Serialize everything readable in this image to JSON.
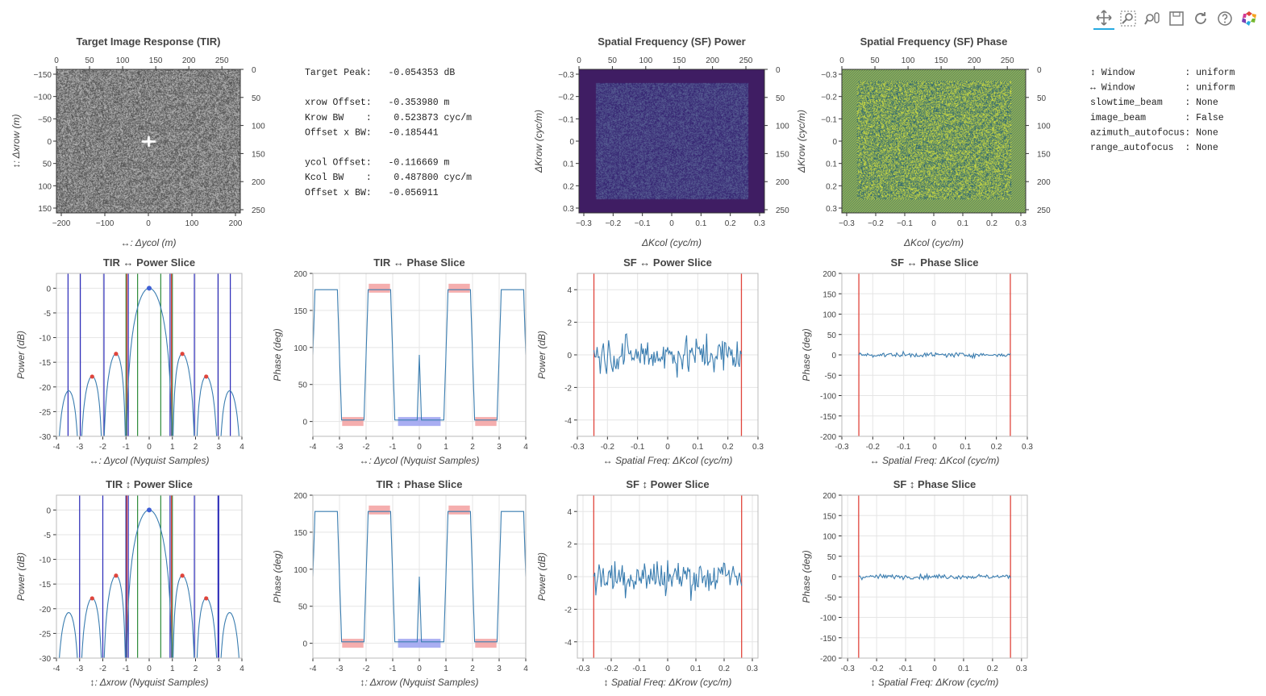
{
  "toolbar": {
    "tools": [
      {
        "name": "pan-tool",
        "icon": "pan-icon",
        "active": true
      },
      {
        "name": "box-zoom-tool",
        "icon": "box-zoom-icon",
        "active": false
      },
      {
        "name": "wheel-zoom-tool",
        "icon": "wheel-zoom-icon",
        "active": false
      },
      {
        "name": "save-tool",
        "icon": "save-icon",
        "active": false
      },
      {
        "name": "reset-tool",
        "icon": "reset-icon",
        "active": false
      },
      {
        "name": "help-tool",
        "icon": "help-icon",
        "active": false
      },
      {
        "name": "bokeh-logo",
        "icon": "bokeh-logo-icon",
        "active": false
      }
    ]
  },
  "colors": {
    "line": "#3a7db0",
    "green": "#2e8b3a",
    "blue_line": "#2a2ab8",
    "red_line": "#e0453c",
    "red_patch": "#f3a0a0",
    "blue_patch": "#9aa0f0",
    "grid": "#e5e5e5",
    "viridis_dark": "#3f1d63",
    "viridis_mid": "#2f6e8e",
    "viridis_bright": "#c8e03a"
  },
  "stats": {
    "lines": [
      "Target Peak:   -0.054353 dB",
      "",
      "xrow Offset:   -0.353980 m",
      "Krow BW    :    0.523873 cyc/m",
      "Offset x BW:   -0.185441",
      "",
      "ycol Offset:   -0.116669 m",
      "Kcol BW    :    0.487800 cyc/m",
      "Offset x BW:   -0.056911"
    ]
  },
  "settings": {
    "lines": [
      "↕ Window         : uniform",
      "↔ Window         : uniform",
      "slowtime_beam    : None",
      "image_beam       : False",
      "azimuth_autofocus: None",
      "range_autofocus  : None"
    ]
  },
  "images": [
    {
      "id": "tir",
      "title": "Target Image Response (TIR)",
      "xlabel": "↔: Δycol (m)",
      "ylabel": "↕: Δxrow (m)",
      "bottom_ticks": [
        "−200",
        "−100",
        "0",
        "100",
        "200"
      ],
      "left_ticks": [
        "−150",
        "−100",
        "−50",
        "0",
        "50",
        "100",
        "150"
      ],
      "top_ticks": [
        "0",
        "50",
        "100",
        "150",
        "200",
        "250"
      ],
      "right_ticks": [
        "0",
        "50",
        "100",
        "150",
        "200",
        "250"
      ],
      "style": "gray"
    },
    {
      "id": "sfpow",
      "title": "Spatial Frequency (SF) Power",
      "xlabel": "ΔKcol (cyc/m)",
      "ylabel": "ΔKrow (cyc/m)",
      "bottom_ticks": [
        "−0.3",
        "−0.2",
        "−0.1",
        "0",
        "0.1",
        "0.2",
        "0.3"
      ],
      "left_ticks": [
        "−0.3",
        "−0.2",
        "−0.1",
        "0",
        "0.1",
        "0.2",
        "0.3"
      ],
      "top_ticks": [
        "0",
        "50",
        "100",
        "150",
        "200",
        "250"
      ],
      "right_ticks": [
        "0",
        "50",
        "100",
        "150",
        "200",
        "250"
      ],
      "style": "power"
    },
    {
      "id": "sfphase",
      "title": "Spatial Frequency (SF) Phase",
      "xlabel": "ΔKcol (cyc/m)",
      "ylabel": "ΔKrow (cyc/m)",
      "bottom_ticks": [
        "−0.3",
        "−0.2",
        "−0.1",
        "0",
        "0.1",
        "0.2",
        "0.3"
      ],
      "left_ticks": [
        "−0.3",
        "−0.2",
        "−0.1",
        "0",
        "0.1",
        "0.2",
        "0.3"
      ],
      "top_ticks": [
        "0",
        "50",
        "100",
        "150",
        "200",
        "250"
      ],
      "right_ticks": [
        "0",
        "50",
        "100",
        "150",
        "200",
        "250"
      ],
      "style": "phase"
    }
  ],
  "chart_data": [
    {
      "id": "tir-h-power",
      "type": "line",
      "title": "TIR ↔ Power Slice",
      "xlabel": "↔: Δycol (Nyquist Samples)",
      "ylabel": "Power (dB)",
      "xlim": [
        -4,
        4
      ],
      "ylim": [
        -30,
        3
      ],
      "xticks": [
        -4,
        -3,
        -2,
        -1,
        0,
        1,
        2,
        3,
        4
      ],
      "yticks": [
        0,
        -5,
        -10,
        -15,
        -20,
        -25,
        -30
      ],
      "kind": "sinc_power",
      "peak_point": [
        0,
        0
      ],
      "sidelobe_points": [
        [
          -2.46,
          -17.9
        ],
        [
          -1.43,
          -13.3
        ],
        [
          1.43,
          -13.3
        ],
        [
          2.46,
          -17.9
        ]
      ],
      "green_lines": [
        -1.0,
        -0.5,
        0.5,
        1.0
      ],
      "blue_lines": [
        -3.5,
        -2.97,
        -1.95,
        -0.9,
        0.9,
        1.95,
        2.97,
        3.5
      ],
      "red_lines": [
        -0.96,
        0.96
      ]
    },
    {
      "id": "tir-h-phase",
      "type": "line",
      "title": "TIR ↔ Phase Slice",
      "xlabel": "↔: Δycol (Nyquist Samples)",
      "ylabel": "Phase (deg)",
      "xlim": [
        -4,
        4
      ],
      "ylim": [
        -20,
        200
      ],
      "xticks": [
        -4,
        -3,
        -2,
        -1,
        0,
        1,
        2,
        3,
        4
      ],
      "yticks": [
        200,
        150,
        100,
        50,
        0
      ],
      "kind": "step_phase",
      "red_patches": [
        [
          -2.9,
          -2.1,
          0
        ],
        [
          -1.9,
          -1.1,
          180
        ],
        [
          1.1,
          1.9,
          180
        ],
        [
          2.1,
          2.9,
          0
        ]
      ],
      "blue_patches": [
        [
          -0.8,
          0.8,
          0
        ]
      ]
    },
    {
      "id": "sf-h-power",
      "type": "line",
      "title": "SF ↔ Power Slice",
      "xlabel": "↔ Spatial Freq: ΔKcol (cyc/m)",
      "ylabel": "Power (dB)",
      "xlim": [
        -0.3,
        0.3
      ],
      "ylim": [
        -5,
        5
      ],
      "xticks": [
        -0.3,
        -0.2,
        -0.1,
        0,
        0.1,
        0.2,
        0.3
      ],
      "yticks": [
        4,
        2,
        0,
        -2,
        -4
      ],
      "kind": "noise_power",
      "band": [
        -0.245,
        0.245
      ],
      "red_lines": [
        -0.245,
        0.245
      ]
    },
    {
      "id": "sf-h-phase",
      "type": "line",
      "title": "SF ↔ Phase Slice",
      "xlabel": "↔ Spatial Freq: ΔKcol (cyc/m)",
      "ylabel": "Phase (deg)",
      "xlim": [
        -0.3,
        0.3
      ],
      "ylim": [
        -200,
        200
      ],
      "xticks": [
        -0.3,
        -0.2,
        -0.1,
        0,
        0.1,
        0.2,
        0.3
      ],
      "yticks": [
        200,
        150,
        100,
        50,
        0,
        -50,
        -100,
        -150,
        -200
      ],
      "kind": "noise_phase",
      "band": [
        -0.245,
        0.245
      ],
      "red_lines": [
        -0.245,
        0.245
      ]
    },
    {
      "id": "tir-v-power",
      "type": "line",
      "title": "TIR ↕ Power Slice",
      "xlabel": "↕: Δxrow (Nyquist Samples)",
      "ylabel": "Power (dB)",
      "xlim": [
        -4,
        4
      ],
      "ylim": [
        -30,
        3
      ],
      "xticks": [
        -4,
        -3,
        -2,
        -1,
        0,
        1,
        2,
        3,
        4
      ],
      "yticks": [
        0,
        -5,
        -10,
        -15,
        -20,
        -25,
        -30
      ],
      "kind": "sinc_power",
      "peak_point": [
        0,
        0
      ],
      "sidelobe_points": [
        [
          -2.46,
          -17.9
        ],
        [
          -1.43,
          -13.3
        ],
        [
          1.43,
          -13.3
        ],
        [
          2.46,
          -17.9
        ]
      ],
      "green_lines": [
        -1.0,
        -0.5,
        0.5,
        1.0
      ],
      "blue_lines": [
        -3.0,
        -2.0,
        -1.0,
        -0.9,
        0.9,
        1.95,
        2.97,
        3.0
      ],
      "red_lines": [
        -0.96,
        0.96
      ]
    },
    {
      "id": "tir-v-phase",
      "type": "line",
      "title": "TIR ↕ Phase Slice",
      "xlabel": "↕: Δxrow (Nyquist Samples)",
      "ylabel": "Phase (deg)",
      "xlim": [
        -4,
        4
      ],
      "ylim": [
        -20,
        200
      ],
      "xticks": [
        -4,
        -3,
        -2,
        -1,
        0,
        1,
        2,
        3,
        4
      ],
      "yticks": [
        200,
        150,
        100,
        50,
        0
      ],
      "kind": "step_phase",
      "red_patches": [
        [
          -2.9,
          -2.1,
          0
        ],
        [
          -1.9,
          -1.1,
          180
        ],
        [
          1.1,
          1.9,
          180
        ],
        [
          2.1,
          2.9,
          0
        ]
      ],
      "blue_patches": [
        [
          -0.8,
          0.8,
          0
        ]
      ]
    },
    {
      "id": "sf-v-power",
      "type": "line",
      "title": "SF ↕ Power Slice",
      "xlabel": "↕ Spatial Freq: ΔKrow (cyc/m)",
      "ylabel": "Power (dB)",
      "xlim": [
        -0.32,
        0.32
      ],
      "ylim": [
        -5,
        5
      ],
      "xticks": [
        -0.3,
        -0.2,
        -0.1,
        0,
        0.1,
        0.2,
        0.3
      ],
      "yticks": [
        4,
        2,
        0,
        -2,
        -4
      ],
      "kind": "noise_power",
      "band": [
        -0.262,
        0.262
      ],
      "red_lines": [
        -0.262,
        0.262
      ]
    },
    {
      "id": "sf-v-phase",
      "type": "line",
      "title": "SF ↕ Phase Slice",
      "xlabel": "↕ Spatial Freq: ΔKrow (cyc/m)",
      "ylabel": "Phase (deg)",
      "xlim": [
        -0.32,
        0.32
      ],
      "ylim": [
        -200,
        200
      ],
      "xticks": [
        -0.3,
        -0.2,
        -0.1,
        0,
        0.1,
        0.2,
        0.3
      ],
      "yticks": [
        200,
        150,
        100,
        50,
        0,
        -50,
        -100,
        -150,
        -200
      ],
      "kind": "noise_phase",
      "band": [
        -0.262,
        0.262
      ],
      "red_lines": [
        -0.262,
        0.262
      ]
    }
  ]
}
